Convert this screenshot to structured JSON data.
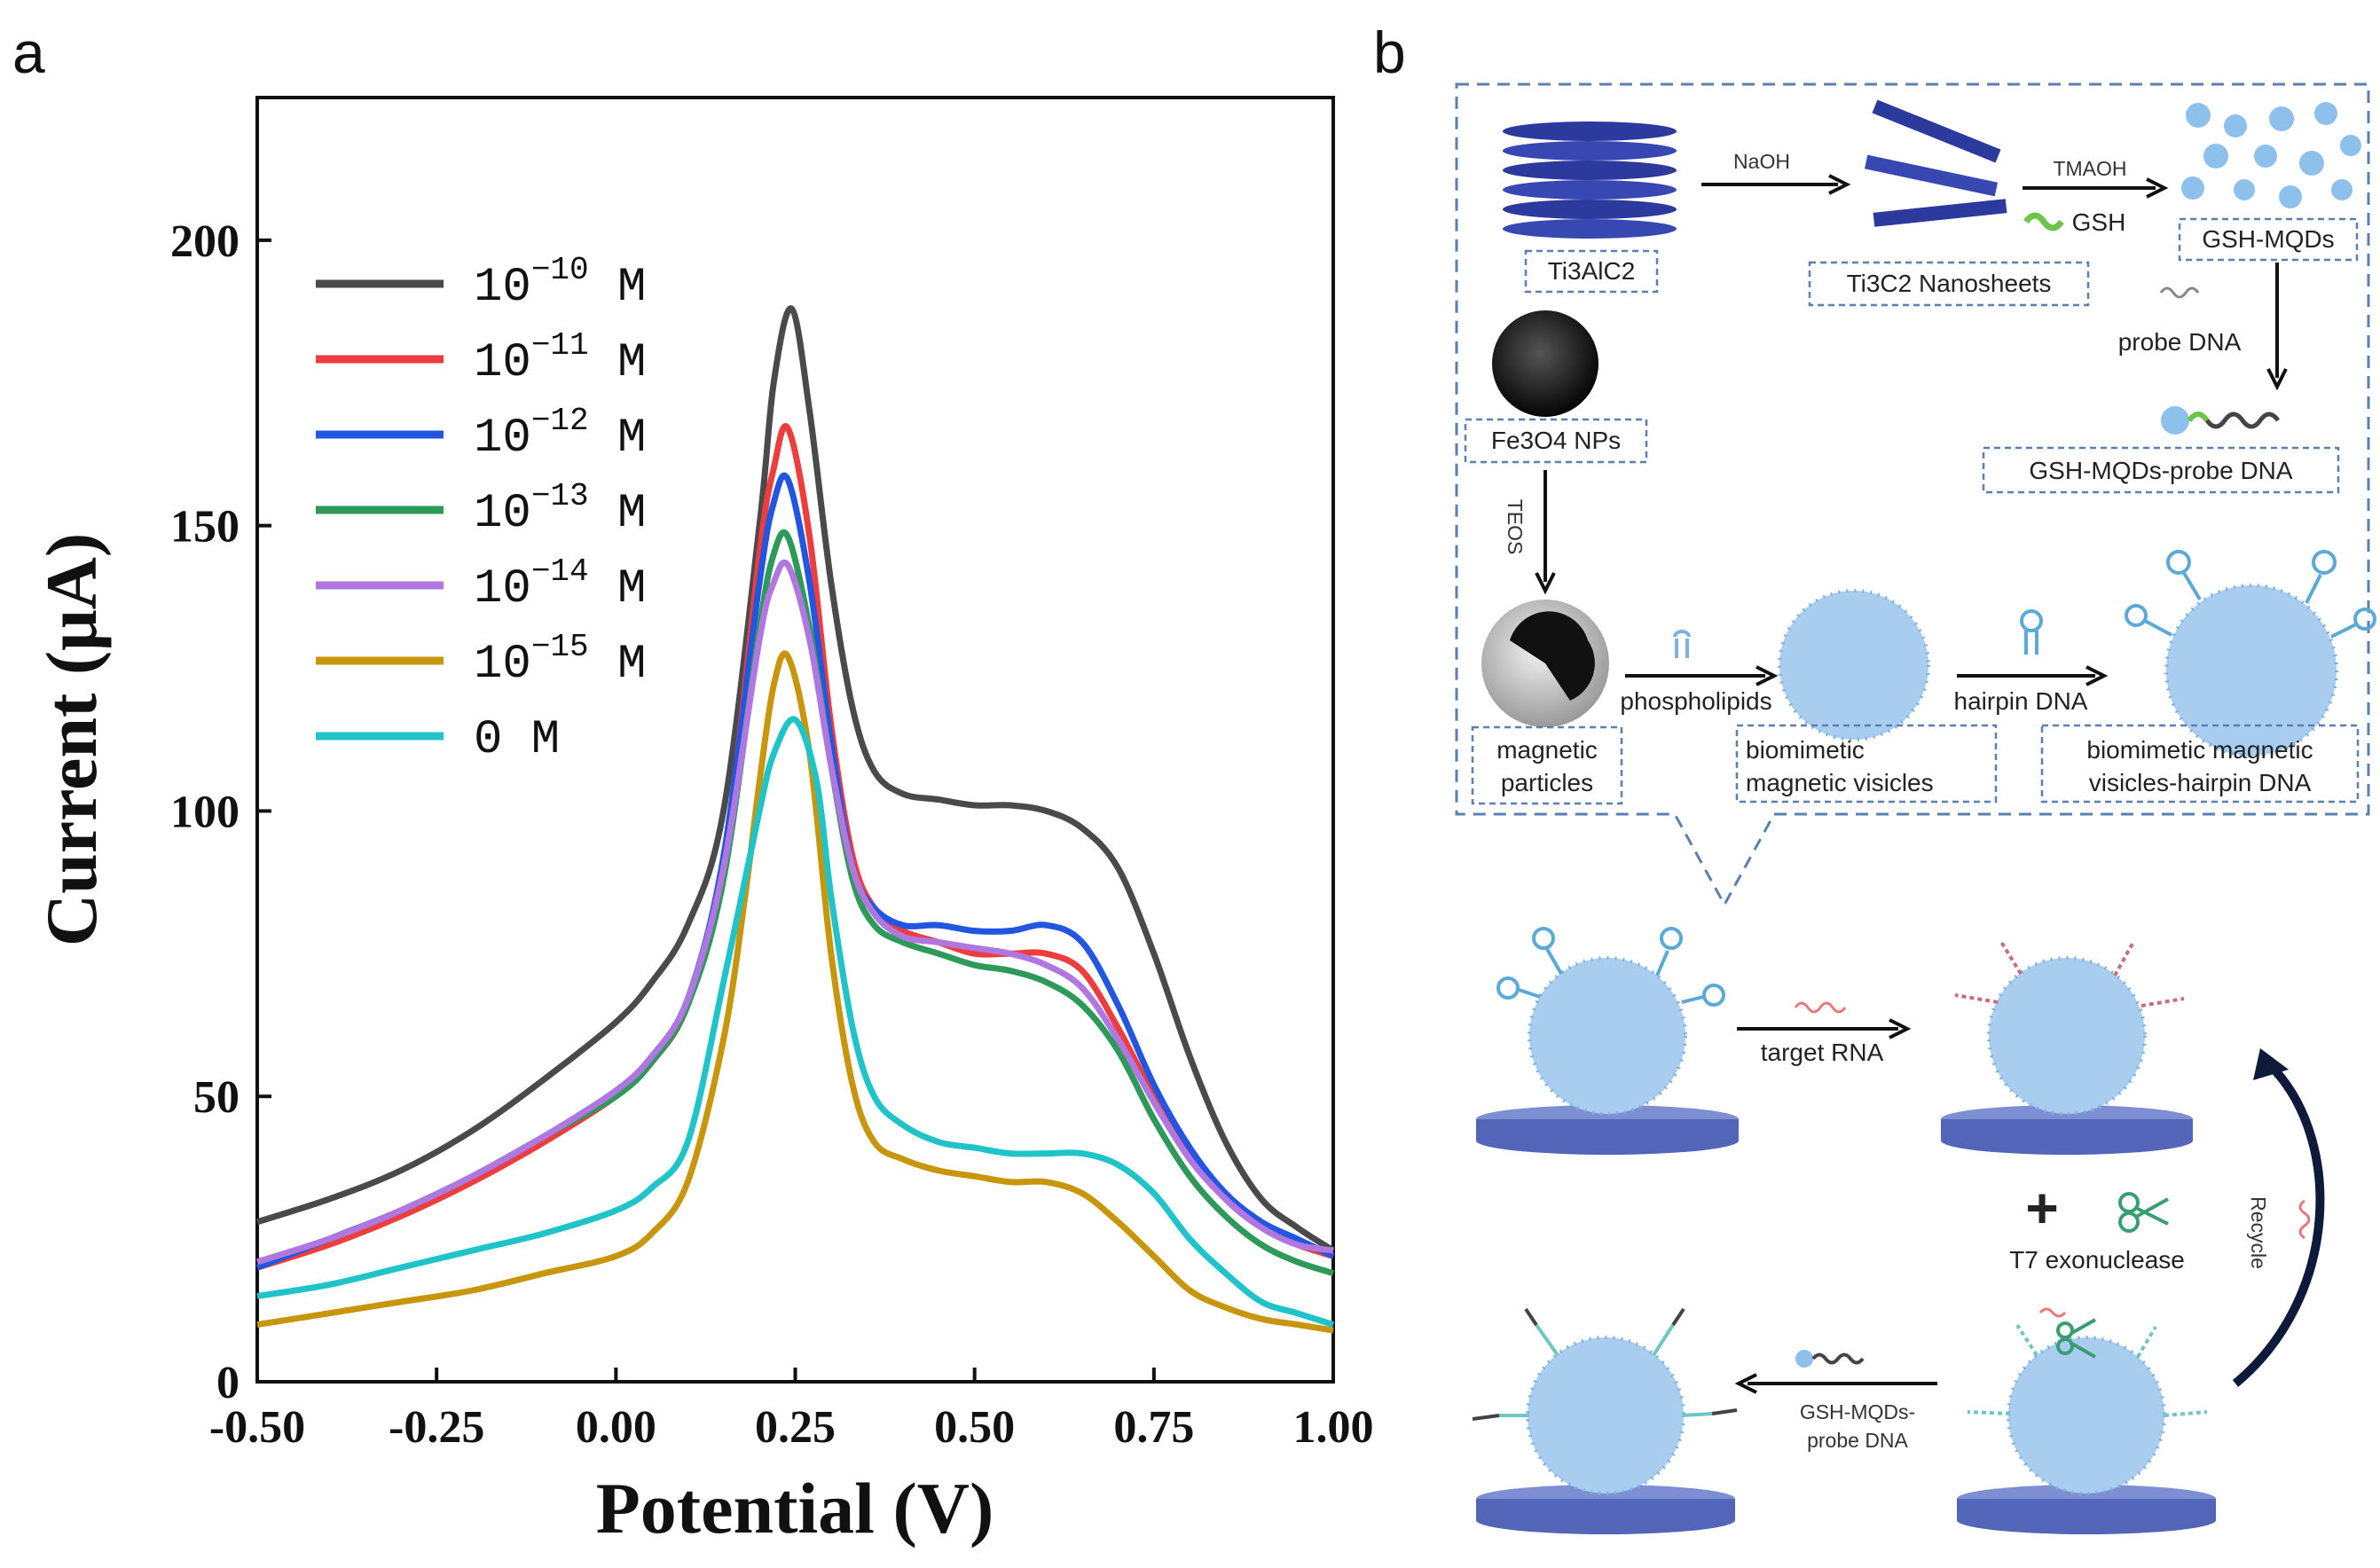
{
  "panel_a_label": "a",
  "panel_b_label": "b",
  "chart_data": {
    "type": "line",
    "title": "",
    "xlabel": "Potential (V)",
    "ylabel": "Current (μA)",
    "xlim": [
      -0.5,
      1.0
    ],
    "ylim": [
      0,
      225
    ],
    "xticks": [
      -0.5,
      -0.25,
      0.0,
      0.25,
      0.5,
      0.75,
      1.0
    ],
    "xtick_labels": [
      "-0.50",
      "-0.25",
      "0.00",
      "0.25",
      "0.50",
      "0.75",
      "1.00"
    ],
    "yticks": [
      0,
      50,
      100,
      150,
      200
    ],
    "ytick_labels": [
      "0",
      "50",
      "100",
      "150",
      "200"
    ],
    "legend_position": "top-left",
    "series": [
      {
        "name": "10^-10 M",
        "base": "10",
        "exp": "−10",
        "unit": "M",
        "color": "#4a4a4a",
        "x": [
          -0.5,
          -0.4,
          -0.3,
          -0.2,
          -0.1,
          0.0,
          0.05,
          0.1,
          0.15,
          0.2,
          0.22,
          0.245,
          0.27,
          0.3,
          0.33,
          0.36,
          0.4,
          0.45,
          0.5,
          0.55,
          0.6,
          0.65,
          0.7,
          0.75,
          0.8,
          0.85,
          0.9,
          0.95,
          1.0
        ],
        "y": [
          28,
          32,
          37,
          44,
          53,
          63,
          70,
          80,
          100,
          150,
          175,
          188,
          170,
          140,
          118,
          107,
          103,
          102,
          101,
          101,
          100,
          97,
          90,
          75,
          57,
          42,
          32,
          27,
          23
        ]
      },
      {
        "name": "10^-11 M",
        "base": "10",
        "exp": "−11",
        "unit": "M",
        "color": "#ee3d3d",
        "x": [
          -0.5,
          -0.4,
          -0.3,
          -0.2,
          -0.1,
          0.0,
          0.05,
          0.1,
          0.15,
          0.2,
          0.22,
          0.24,
          0.27,
          0.3,
          0.33,
          0.36,
          0.4,
          0.45,
          0.5,
          0.55,
          0.6,
          0.65,
          0.7,
          0.75,
          0.8,
          0.85,
          0.9,
          0.95,
          1.0
        ],
        "y": [
          20,
          24,
          29,
          35,
          42,
          50,
          56,
          66,
          90,
          145,
          160,
          167,
          148,
          115,
          92,
          83,
          79,
          77,
          75,
          75,
          75,
          72,
          62,
          50,
          40,
          32,
          27,
          24,
          22
        ]
      },
      {
        "name": "10^-12 M",
        "base": "10",
        "exp": "−12",
        "unit": "M",
        "color": "#2255e0",
        "x": [
          -0.5,
          -0.4,
          -0.3,
          -0.2,
          -0.1,
          0.0,
          0.05,
          0.1,
          0.15,
          0.2,
          0.22,
          0.24,
          0.27,
          0.3,
          0.33,
          0.36,
          0.4,
          0.45,
          0.5,
          0.55,
          0.6,
          0.65,
          0.7,
          0.75,
          0.8,
          0.85,
          0.9,
          0.95,
          1.0
        ],
        "y": [
          20,
          25,
          30,
          36,
          43,
          51,
          57,
          67,
          92,
          140,
          154,
          158,
          140,
          112,
          90,
          83,
          80,
          80,
          79,
          79,
          80,
          77,
          66,
          52,
          41,
          33,
          28,
          25,
          22
        ]
      },
      {
        "name": "10^-13 M",
        "base": "10",
        "exp": "−13",
        "unit": "M",
        "color": "#2e9a5a",
        "x": [
          -0.5,
          -0.4,
          -0.3,
          -0.2,
          -0.1,
          0.0,
          0.05,
          0.1,
          0.15,
          0.2,
          0.22,
          0.24,
          0.27,
          0.3,
          0.33,
          0.36,
          0.4,
          0.45,
          0.5,
          0.55,
          0.6,
          0.65,
          0.7,
          0.75,
          0.8,
          0.85,
          0.9,
          0.95,
          1.0
        ],
        "y": [
          21,
          25,
          30,
          36,
          43,
          50,
          56,
          66,
          88,
          132,
          145,
          148,
          132,
          108,
          88,
          80,
          77,
          75,
          73,
          72,
          70,
          66,
          58,
          46,
          36,
          29,
          24,
          21,
          19
        ]
      },
      {
        "name": "10^-14 M",
        "base": "10",
        "exp": "−14",
        "unit": "M",
        "color": "#b177e0",
        "x": [
          -0.5,
          -0.4,
          -0.3,
          -0.2,
          -0.1,
          0.0,
          0.05,
          0.1,
          0.15,
          0.2,
          0.22,
          0.24,
          0.27,
          0.3,
          0.33,
          0.36,
          0.4,
          0.45,
          0.5,
          0.55,
          0.6,
          0.65,
          0.7,
          0.75,
          0.8,
          0.85,
          0.9,
          0.95,
          1.0
        ],
        "y": [
          21,
          25,
          30,
          36,
          43,
          51,
          57,
          67,
          90,
          130,
          140,
          143,
          130,
          108,
          90,
          82,
          78,
          77,
          76,
          75,
          73,
          69,
          60,
          49,
          39,
          32,
          27,
          24,
          23
        ]
      },
      {
        "name": "10^-15 M",
        "base": "10",
        "exp": "−15",
        "unit": "M",
        "color": "#c8960c",
        "x": [
          -0.5,
          -0.4,
          -0.3,
          -0.2,
          -0.1,
          0.0,
          0.05,
          0.1,
          0.15,
          0.18,
          0.2,
          0.22,
          0.24,
          0.27,
          0.3,
          0.33,
          0.36,
          0.4,
          0.45,
          0.5,
          0.55,
          0.6,
          0.65,
          0.7,
          0.75,
          0.8,
          0.85,
          0.9,
          0.95,
          1.0
        ],
        "y": [
          10,
          12,
          14,
          16,
          19,
          22,
          26,
          35,
          60,
          85,
          105,
          122,
          127,
          110,
          75,
          52,
          42,
          39,
          37,
          36,
          35,
          35,
          33,
          28,
          22,
          16,
          13,
          11,
          10,
          9
        ]
      },
      {
        "name": "0 M",
        "base": "0",
        "exp": "",
        "unit": "M",
        "color": "#20c4c8",
        "x": [
          -0.5,
          -0.4,
          -0.3,
          -0.2,
          -0.1,
          0.0,
          0.05,
          0.1,
          0.15,
          0.2,
          0.22,
          0.25,
          0.28,
          0.3,
          0.33,
          0.36,
          0.4,
          0.45,
          0.5,
          0.55,
          0.6,
          0.65,
          0.7,
          0.75,
          0.8,
          0.85,
          0.9,
          0.95,
          1.0
        ],
        "y": [
          15,
          17,
          20,
          23,
          26,
          30,
          34,
          42,
          70,
          100,
          110,
          116,
          105,
          85,
          62,
          50,
          45,
          42,
          41,
          40,
          40,
          40,
          38,
          33,
          25,
          19,
          14,
          12,
          10
        ]
      }
    ]
  },
  "diagram": {
    "ti3alc2": "Ti3AlC2",
    "naoh": "NaOH",
    "nanosheets": "Ti3C2 Nanosheets",
    "tmaoh": "TMAOH",
    "gsh": "GSH",
    "gsh_mqds": "GSH-MQDs",
    "probe_dna": "probe DNA",
    "gsh_mqds_probe_dna": "GSH-MQDs-probe DNA",
    "fe3o4": "Fe3O4 NPs",
    "teos": "TEOS",
    "phospholipids": "phospholipids",
    "hairpin_dna": "hairpin DNA",
    "magnetic_particles_1": "magnetic",
    "magnetic_particles_2": "particles",
    "bio_vesicles_1": "biomimetic",
    "bio_vesicles_2": "magnetic visicles",
    "bio_hairpin_1": "biomimetic magnetic",
    "bio_hairpin_2": "visicles-hairpin DNA",
    "target_rna": "target  RNA",
    "plus": "+",
    "t7": "T7 exonuclease",
    "recycle": "Recycle",
    "probe_bottom_1": "GSH-MQDs-",
    "probe_bottom_2": "probe DNA"
  }
}
